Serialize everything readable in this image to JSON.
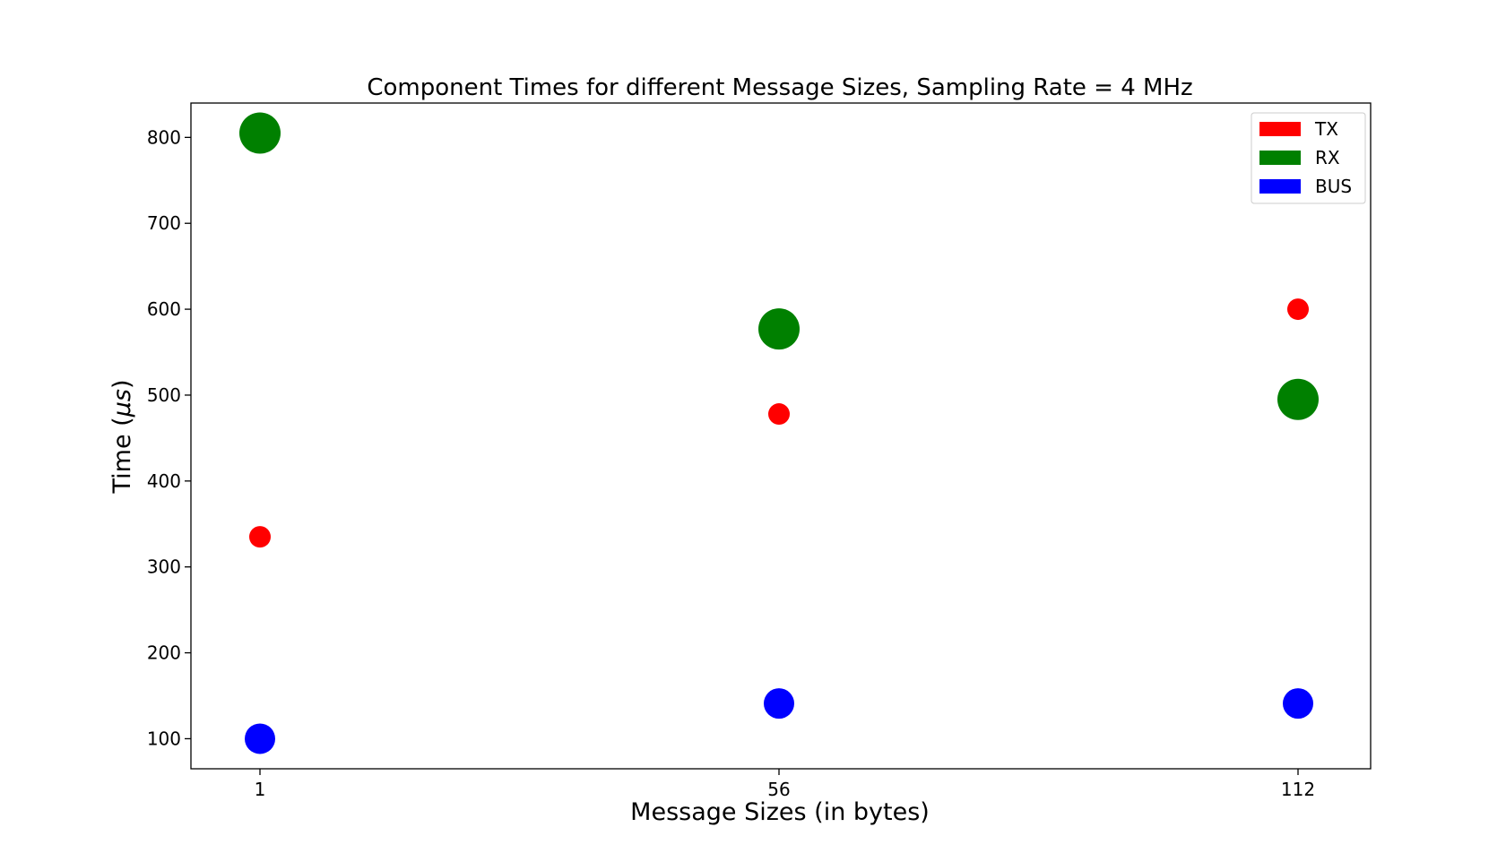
{
  "chart_data": {
    "type": "scatter",
    "title": "Component Times for different Message Sizes, Sampling Rate = 4 MHz",
    "xlabel": "Message Sizes (in bytes)",
    "ylabel": "Time (μs)",
    "x": [
      1,
      56,
      112
    ],
    "xticks": [
      "1",
      "56",
      "112"
    ],
    "ylim": [
      65,
      840
    ],
    "yticks": [
      100,
      200,
      300,
      400,
      500,
      600,
      700,
      800
    ],
    "grid": false,
    "legend_position": "top-right",
    "series": [
      {
        "name": "TX",
        "color": "#ff0000",
        "values": [
          335,
          478,
          600
        ],
        "marker_size": "small"
      },
      {
        "name": "RX",
        "color": "#008000",
        "values": [
          805,
          577,
          495
        ],
        "marker_size": "large"
      },
      {
        "name": "BUS",
        "color": "#0000ff",
        "values": [
          100,
          141,
          141
        ],
        "marker_size": "medium"
      }
    ]
  }
}
